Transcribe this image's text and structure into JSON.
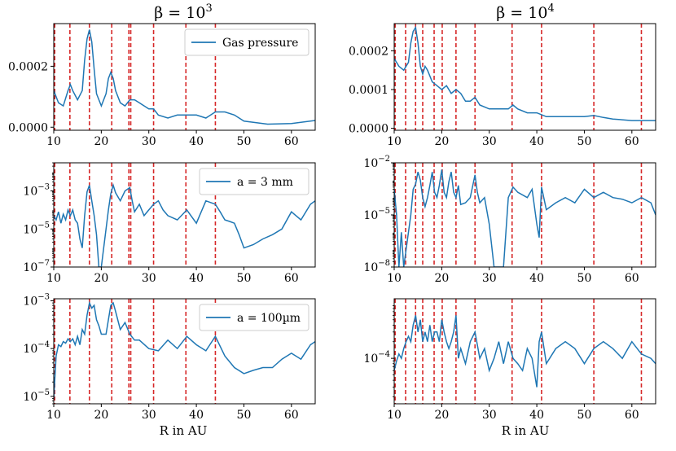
{
  "figure": {
    "col_titles": [
      "β = 10",
      "β = 10"
    ],
    "col_title_exponents": [
      "3",
      "4"
    ],
    "xlabel": "R in AU",
    "line_color": "#1f77b4",
    "vline_color": "#d62728"
  },
  "chart_data": [
    {
      "id": "p00",
      "type": "line",
      "row": 0,
      "col": 0,
      "xlim": [
        10,
        65
      ],
      "ylim": [
        -1e-05,
        0.00034
      ],
      "yscale": "linear",
      "xticks": [
        10,
        20,
        30,
        40,
        50,
        60
      ],
      "xticklabels": [
        "10",
        "20",
        "30",
        "40",
        "50",
        "60"
      ],
      "yticks": [
        0,
        0.0002
      ],
      "yticklabels": [
        "0.0000",
        "0.0002"
      ],
      "legend": "Gas pressure",
      "legend_loc": "top-right",
      "show_xlabel": false,
      "vlines": [
        10.2,
        13.4,
        17.5,
        22.2,
        25.8,
        26.2,
        31.0,
        37.8,
        44.0
      ],
      "x": [
        10,
        11,
        12,
        13,
        13.5,
        14,
        15,
        16,
        16.5,
        17,
        17.5,
        18,
        18.5,
        19,
        20,
        21,
        21.5,
        22,
        22.5,
        23,
        24,
        25,
        26,
        27,
        28,
        30,
        31,
        32,
        34,
        36,
        38,
        40,
        42,
        44,
        46,
        48,
        50,
        55,
        60,
        65
      ],
      "y": [
        0.00012,
        8e-05,
        7e-05,
        0.00012,
        0.00014,
        0.00012,
        9e-05,
        0.00012,
        0.00022,
        0.00029,
        0.00032,
        0.00028,
        0.00019,
        0.00011,
        7e-05,
        0.00011,
        0.00016,
        0.00018,
        0.00016,
        0.00012,
        8e-05,
        7e-05,
        9e-05,
        9e-05,
        8e-05,
        6e-05,
        6e-05,
        4e-05,
        3e-05,
        4e-05,
        4e-05,
        4e-05,
        3e-05,
        5e-05,
        5e-05,
        4e-05,
        2e-05,
        1e-05,
        1.2e-05,
        2.2e-05
      ]
    },
    {
      "id": "p01",
      "type": "line",
      "row": 0,
      "col": 1,
      "xlim": [
        10,
        65
      ],
      "ylim": [
        -5e-06,
        0.00027
      ],
      "yscale": "linear",
      "xticks": [
        10,
        20,
        30,
        40,
        50,
        60
      ],
      "xticklabels": [
        "10",
        "20",
        "30",
        "40",
        "50",
        "60"
      ],
      "yticks": [
        0,
        0.0001,
        0.0002
      ],
      "yticklabels": [
        "0.0000",
        "0.0001",
        "0.0002"
      ],
      "legend": "",
      "legend_loc": "",
      "show_xlabel": false,
      "vlines": [
        10.2,
        12.4,
        14.5,
        16.0,
        18.4,
        20.1,
        23.0,
        27.0,
        34.8,
        41.0,
        52.0,
        62.0
      ],
      "x": [
        10,
        11,
        12,
        13,
        13.5,
        14,
        14.5,
        15,
        15.5,
        16,
        16.5,
        17,
        18,
        19,
        20,
        21,
        22,
        23,
        24,
        25,
        26,
        27,
        28,
        30,
        32,
        34,
        35,
        36,
        38,
        40,
        42,
        44,
        46,
        48,
        50,
        52,
        54,
        56,
        60,
        65
      ],
      "y": [
        0.00018,
        0.00016,
        0.00015,
        0.00017,
        0.00022,
        0.00025,
        0.00026,
        0.00022,
        0.00016,
        0.00014,
        0.00016,
        0.00015,
        0.00012,
        0.00011,
        0.0001,
        0.00011,
        9e-05,
        0.0001,
        9e-05,
        7e-05,
        7e-05,
        8e-05,
        6e-05,
        5e-05,
        5e-05,
        5e-05,
        6e-05,
        5e-05,
        4e-05,
        4e-05,
        3e-05,
        3e-05,
        3e-05,
        3e-05,
        3e-05,
        3.3e-05,
        2.8e-05,
        2.4e-05,
        2e-05,
        2e-05
      ]
    },
    {
      "id": "p10",
      "type": "line",
      "row": 1,
      "col": 0,
      "xlim": [
        10,
        65
      ],
      "ylim": [
        1e-07,
        0.03
      ],
      "yscale": "log",
      "xticks": [
        10,
        20,
        30,
        40,
        50,
        60
      ],
      "xticklabels": [
        "10",
        "20",
        "30",
        "40",
        "50",
        "60"
      ],
      "yticks": [
        1e-07,
        1e-05,
        0.001
      ],
      "yticklabels": [
        "10",
        "10",
        "10"
      ],
      "ytickexponents": [
        "−7",
        "−5",
        "−3"
      ],
      "legend": "a = 3 mm",
      "legend_loc": "top-right",
      "show_xlabel": false,
      "vlines": [
        10.2,
        13.4,
        17.5,
        22.2,
        25.8,
        26.2,
        31.0,
        37.8,
        44.0
      ],
      "x": [
        10,
        10.5,
        11,
        11.5,
        12,
        12.5,
        13,
        13.5,
        14,
        14.5,
        15,
        15.5,
        16,
        16.5,
        17,
        17.5,
        18,
        18.5,
        19,
        19.5,
        20,
        20.5,
        21,
        21.5,
        22,
        22.5,
        23,
        24,
        25,
        26,
        26.5,
        27,
        28,
        29,
        30,
        31,
        32,
        33,
        34,
        36,
        38,
        40,
        42,
        44,
        45,
        46,
        47,
        48,
        49,
        50,
        52,
        54,
        56,
        58,
        60,
        62,
        64,
        65
      ],
      "y": [
        5e-05,
        3e-05,
        8e-05,
        2e-05,
        6e-05,
        3e-05,
        0.0001,
        5e-05,
        0.0001,
        3e-05,
        2e-05,
        3e-06,
        1e-06,
        5e-05,
        0.0009,
        0.002,
        0.0003,
        5e-05,
        5e-06,
        1e-07,
        1e-07,
        1e-06,
        1e-05,
        0.0001,
        0.0007,
        0.002,
        0.0008,
        0.0003,
        0.001,
        0.0015,
        0.0003,
        8e-05,
        0.0002,
        5e-05,
        0.0001,
        0.0002,
        0.0003,
        0.0001,
        5e-05,
        3e-05,
        0.0001,
        2e-05,
        0.0003,
        0.0002,
        8e-05,
        3e-05,
        2.5e-05,
        2e-05,
        5e-06,
        1e-06,
        1.5e-06,
        3e-06,
        5e-06,
        1e-05,
        8e-05,
        3e-05,
        0.0002,
        0.0003
      ]
    },
    {
      "id": "p11",
      "type": "line",
      "row": 1,
      "col": 1,
      "xlim": [
        10,
        65
      ],
      "ylim": [
        1e-08,
        0.01
      ],
      "yscale": "log",
      "xticks": [
        10,
        20,
        30,
        40,
        50,
        60
      ],
      "xticklabels": [
        "10",
        "20",
        "30",
        "40",
        "50",
        "60"
      ],
      "yticks": [
        1e-08,
        1e-05,
        0.01
      ],
      "yticklabels": [
        "10",
        "10",
        "10"
      ],
      "ytickexponents": [
        "−8",
        "−5",
        "−2"
      ],
      "legend": "",
      "legend_loc": "",
      "show_xlabel": false,
      "vlines": [
        10.2,
        12.4,
        14.5,
        16.0,
        18.4,
        20.1,
        23.0,
        27.0,
        34.8,
        41.0,
        52.0,
        62.0
      ],
      "x": [
        10,
        10.5,
        11,
        11.5,
        12,
        12.5,
        13,
        13.5,
        14,
        14.5,
        15,
        15.5,
        16,
        16.5,
        17,
        17.5,
        18,
        18.5,
        19,
        19.5,
        20,
        20.5,
        21,
        21.5,
        22,
        22.5,
        23,
        23.5,
        24,
        25,
        26,
        27,
        27.5,
        28,
        29,
        30,
        31,
        32,
        33,
        34,
        35,
        36,
        38,
        39,
        40,
        40.5,
        41,
        42,
        44,
        46,
        48,
        50,
        52,
        54,
        56,
        58,
        60,
        62,
        64,
        65
      ],
      "y": [
        0.0003,
        1e-05,
        1e-08,
        1e-06,
        1e-08,
        1e-07,
        1e-06,
        1e-05,
        0.0003,
        0.0006,
        0.003,
        0.001,
        0.0001,
        3e-05,
        0.0001,
        0.0005,
        0.003,
        0.0002,
        0.0001,
        0.0005,
        0.004,
        0.0002,
        0.0001,
        0.0008,
        0.003,
        0.0002,
        0.0001,
        0.0005,
        4e-05,
        5e-05,
        0.0001,
        0.002,
        0.0002,
        5e-05,
        0.0001,
        3e-06,
        1e-08,
        1e-08,
        1e-08,
        0.0001,
        0.0004,
        0.0002,
        0.0001,
        0.0003,
        3e-06,
        5e-07,
        0.0004,
        2e-05,
        5e-05,
        0.0001,
        5e-05,
        0.0003,
        0.0001,
        0.0002,
        0.0001,
        8e-05,
        5e-05,
        0.0001,
        5e-05,
        1e-05
      ]
    },
    {
      "id": "p20",
      "type": "line",
      "row": 2,
      "col": 0,
      "xlim": [
        10,
        65
      ],
      "ylim": [
        7e-06,
        0.0011
      ],
      "yscale": "log",
      "xticks": [
        10,
        20,
        30,
        40,
        50,
        60
      ],
      "xticklabels": [
        "10",
        "20",
        "30",
        "40",
        "50",
        "60"
      ],
      "yticks": [
        1e-05,
        0.0001,
        0.001
      ],
      "yticklabels": [
        "10",
        "10",
        "10"
      ],
      "ytickexponents": [
        "−5",
        "−4",
        "−3"
      ],
      "legend": "a = 100µm",
      "legend_loc": "top-right",
      "show_xlabel": true,
      "vlines": [
        10.2,
        13.4,
        17.5,
        22.2,
        25.8,
        26.2,
        31.0,
        37.8,
        44.0
      ],
      "x": [
        10,
        10.5,
        11,
        11.5,
        12,
        12.5,
        13,
        13.5,
        14,
        14.5,
        15,
        15.5,
        16,
        16.5,
        17,
        17.5,
        18,
        18.5,
        19,
        19.5,
        20,
        21,
        21.5,
        22,
        22.5,
        23,
        24,
        25,
        26,
        27,
        28,
        30,
        32,
        34,
        36,
        38,
        40,
        42,
        44,
        46,
        48,
        50,
        52,
        54,
        56,
        58,
        60,
        62,
        64,
        65
      ],
      "y": [
        9e-06,
        7e-05,
        0.00012,
        0.00011,
        0.00014,
        0.00013,
        0.00016,
        0.00014,
        0.00016,
        0.00012,
        0.00018,
        0.00012,
        0.00025,
        0.0002,
        0.0005,
        0.0009,
        0.0007,
        0.0008,
        0.0004,
        0.0003,
        0.0002,
        0.0002,
        0.0004,
        0.0008,
        0.0009,
        0.0006,
        0.00025,
        0.00035,
        0.0002,
        0.00015,
        0.00015,
        0.0001,
        9e-05,
        0.00015,
        0.0001,
        0.00018,
        0.00012,
        9e-05,
        0.00018,
        7e-05,
        4e-05,
        3e-05,
        3.5e-05,
        4e-05,
        4e-05,
        6e-05,
        8e-05,
        6e-05,
        0.00012,
        0.00014
      ]
    },
    {
      "id": "p21",
      "type": "line",
      "row": 2,
      "col": 1,
      "xlim": [
        10,
        65
      ],
      "ylim": [
        1.5e-05,
        0.0012
      ],
      "yscale": "log",
      "xticks": [
        10,
        20,
        30,
        40,
        50,
        60
      ],
      "xticklabels": [
        "10",
        "20",
        "30",
        "40",
        "50",
        "60"
      ],
      "yticks": [
        0.0001
      ],
      "yticklabels": [
        "10"
      ],
      "ytickexponents": [
        "−4"
      ],
      "legend": "",
      "legend_loc": "",
      "show_xlabel": true,
      "vlines": [
        10.2,
        12.4,
        14.5,
        16.0,
        18.4,
        20.1,
        23.0,
        27.0,
        34.8,
        41.0,
        52.0,
        62.0
      ],
      "x": [
        10,
        10.5,
        11,
        11.5,
        12,
        12.5,
        13,
        13.5,
        14,
        14.5,
        15,
        15.5,
        16,
        16.5,
        17,
        17.5,
        18,
        18.5,
        19,
        19.5,
        20,
        20.5,
        21,
        21.5,
        22,
        22.5,
        23,
        23.5,
        24,
        25,
        26,
        27,
        28,
        29,
        30,
        31,
        32,
        33,
        34,
        35,
        36,
        37,
        38,
        39,
        40,
        40.5,
        41,
        42,
        44,
        46,
        48,
        50,
        52,
        54,
        56,
        58,
        60,
        62,
        64,
        65
      ],
      "y": [
        6e-05,
        9e-05,
        0.00012,
        0.0001,
        0.00015,
        0.0002,
        0.00025,
        0.0002,
        0.0004,
        0.0006,
        0.0003,
        0.0005,
        0.0002,
        0.0003,
        0.0002,
        0.0004,
        0.0002,
        0.0003,
        0.0003,
        0.0002,
        0.0005,
        0.0003,
        0.0002,
        0.00015,
        0.0002,
        0.0003,
        0.0006,
        0.0001,
        0.00015,
        8e-05,
        0.0002,
        0.0003,
        0.0001,
        0.00015,
        6e-05,
        0.0001,
        0.0002,
        8e-05,
        0.0002,
        0.0001,
        8e-05,
        6e-05,
        0.00015,
        0.0001,
        3e-05,
        0.0002,
        0.0003,
        8e-05,
        0.00015,
        0.0002,
        0.00015,
        8e-05,
        0.00015,
        0.0002,
        0.00015,
        0.0001,
        0.0002,
        0.00012,
        0.0001,
        8e-05
      ]
    }
  ]
}
